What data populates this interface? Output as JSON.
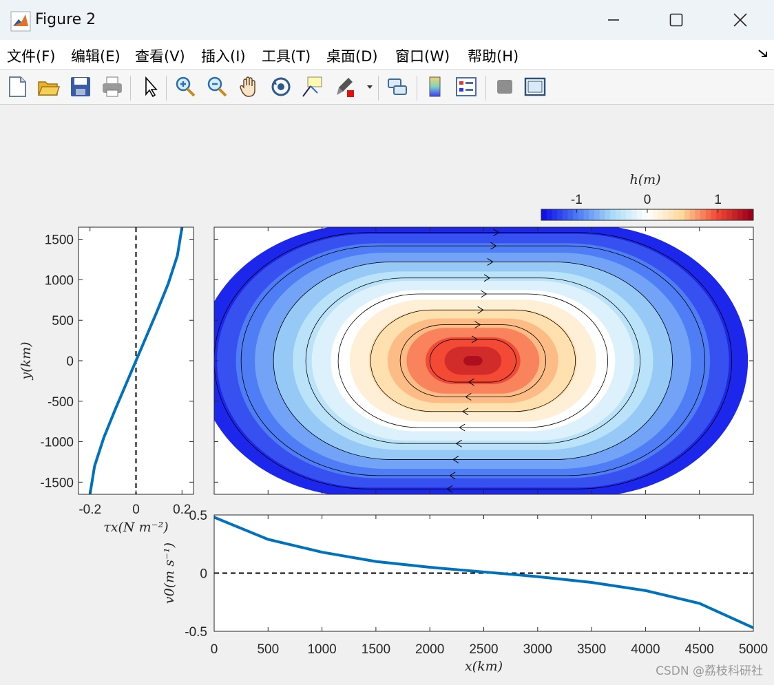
{
  "window": {
    "title": "Figure 2"
  },
  "menu": {
    "items": [
      "文件(F)",
      "编辑(E)",
      "查看(V)",
      "插入(I)",
      "工具(T)",
      "桌面(D)",
      "窗口(W)",
      "帮助(H)"
    ]
  },
  "toolbar": {
    "icons": [
      "new-figure-icon",
      "open-file-icon",
      "save-icon",
      "print-icon",
      "pointer-icon",
      "zoom-in-icon",
      "zoom-out-icon",
      "pan-icon",
      "rotate-3d-icon",
      "data-cursor-icon",
      "brush-icon",
      "link-plot-icon",
      "colorbar-icon",
      "legend-icon",
      "hide-plot-tools-icon",
      "show-plot-tools-icon"
    ]
  },
  "watermark": "CSDN @荔枝科研社",
  "chart_data": [
    {
      "type": "line",
      "ylabel": "y(km)",
      "xlabel": "τx(N m⁻²)",
      "xlim": [
        -0.25,
        0.25
      ],
      "ylim": [
        -1650,
        1650
      ],
      "xticks": [
        "-0.2",
        "0",
        "0.2"
      ],
      "yticks": [
        "1500",
        "1000",
        "500",
        "0",
        "-500",
        "-1000",
        "-1500"
      ],
      "series": [
        {
          "x": [
            -0.2,
            -0.18,
            -0.14,
            -0.09,
            -0.03,
            0.03,
            0.09,
            0.14,
            0.18,
            0.2
          ],
          "y": [
            -1650,
            -1300,
            -950,
            -600,
            -200,
            200,
            600,
            950,
            1300,
            1650
          ]
        }
      ],
      "reference_line": {
        "x": 0,
        "style": "dashed"
      },
      "line_color": "#0072bd"
    },
    {
      "type": "heatmap",
      "title": "h(m)",
      "xlim": [
        0,
        5000
      ],
      "ylim": [
        -1650,
        1650
      ],
      "colorbar": {
        "ticks": [
          "-1",
          "0",
          "1"
        ],
        "range": [
          -1.5,
          1.5
        ],
        "colors": [
          "#1010e8",
          "#4f7df5",
          "#a9dcf7",
          "#ffffff",
          "#ffd89a",
          "#f44a35",
          "#9d0019"
        ]
      },
      "contour_levels": [
        -1.4,
        -1.2,
        -1.0,
        -0.8,
        -0.6,
        -0.4,
        -0.2,
        0,
        0.2,
        0.4,
        0.6,
        0.8,
        1.0,
        1.2,
        1.4
      ],
      "max_value": 1.5,
      "min_value": -1.4,
      "flow": "clockwise gyre"
    },
    {
      "type": "line",
      "ylabel": "v0(m s⁻¹)",
      "xlabel": "x(km)",
      "xlim": [
        0,
        5000
      ],
      "ylim": [
        -0.5,
        0.5
      ],
      "xticks": [
        "0",
        "500",
        "1000",
        "1500",
        "2000",
        "2500",
        "3000",
        "3500",
        "4000",
        "4500",
        "5000"
      ],
      "yticks": [
        "0.5",
        "0",
        "-0.5"
      ],
      "series": [
        {
          "x": [
            0,
            500,
            1000,
            1500,
            2000,
            2500,
            3000,
            3500,
            4000,
            4500,
            5000
          ],
          "y": [
            0.48,
            0.29,
            0.18,
            0.1,
            0.05,
            0.01,
            -0.03,
            -0.08,
            -0.15,
            -0.26,
            -0.47
          ]
        }
      ],
      "reference_line": {
        "y": 0,
        "style": "dashed"
      },
      "line_color": "#0072bd"
    }
  ]
}
